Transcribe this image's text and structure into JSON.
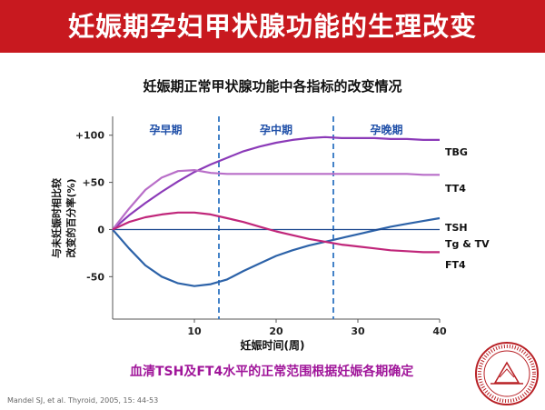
{
  "slide": {
    "title": "妊娠期孕妇甲状腺功能的生理改变",
    "footer_note": "血清TSH及FT4水平的正常范围根据妊娠各期确定",
    "citation": "Mandel SJ, et al.  Thyroid, 2005, 15: 44-53",
    "title_bg_color": "#c8191f"
  },
  "chart_data": {
    "type": "line",
    "title": "妊娠期正常甲状腺功能中各指标的改变情况",
    "xlabel": "妊娠时间(周)",
    "ylabel": [
      "与未妊娠时相比较",
      "改变的百分率(%)"
    ],
    "xlim": [
      0,
      40
    ],
    "ylim": [
      -95,
      120
    ],
    "x_ticks": [
      10,
      20,
      30,
      40
    ],
    "y_ticks": [
      {
        "value": 100,
        "label": "+100"
      },
      {
        "value": 50,
        "label": "+50"
      },
      {
        "value": 0,
        "label": "0"
      },
      {
        "value": -50,
        "label": "-50"
      }
    ],
    "grid": false,
    "periods": [
      {
        "label": "孕早期",
        "start": 0,
        "end": 13
      },
      {
        "label": "孕中期",
        "start": 13,
        "end": 27
      },
      {
        "label": "孕晚期",
        "start": 27,
        "end": 40
      }
    ],
    "period_dividers": [
      13,
      27
    ],
    "series": [
      {
        "name": "TBG",
        "color": "#8b3ab8",
        "x": [
          0,
          2,
          4,
          6,
          8,
          10,
          12,
          14,
          16,
          18,
          20,
          22,
          24,
          26,
          28,
          30,
          32,
          34,
          36,
          38,
          40
        ],
        "values": [
          0,
          15,
          28,
          40,
          51,
          61,
          69,
          76,
          83,
          88,
          92,
          95,
          97,
          98,
          97,
          97,
          97,
          96,
          96,
          95,
          95
        ]
      },
      {
        "name": "TT4",
        "color": "#b86ec8",
        "x": [
          0,
          2,
          4,
          6,
          8,
          10,
          12,
          14,
          16,
          18,
          20,
          22,
          24,
          26,
          28,
          30,
          32,
          34,
          36,
          38,
          40
        ],
        "values": [
          0,
          22,
          42,
          55,
          62,
          63,
          60,
          59,
          59,
          59,
          59,
          59,
          59,
          59,
          59,
          59,
          59,
          59,
          59,
          58,
          58
        ]
      },
      {
        "name": "TSH",
        "color": "#2c62a8",
        "x": [
          0,
          2,
          4,
          6,
          8,
          10,
          12,
          14,
          16,
          18,
          20,
          22,
          24,
          26,
          28,
          30,
          32,
          34,
          36,
          38,
          40
        ],
        "values": [
          0,
          -20,
          -38,
          -50,
          -57,
          -60,
          -58,
          -53,
          -44,
          -36,
          -28,
          -22,
          -17,
          -13,
          -9,
          -5,
          -1,
          3,
          6,
          9,
          12
        ]
      },
      {
        "name": "Tg & TV",
        "color": "#1e4a90",
        "x": [
          0,
          40
        ],
        "values": [
          0,
          0
        ]
      },
      {
        "name": "FT4",
        "color": "#c0267a",
        "x": [
          0,
          2,
          4,
          6,
          8,
          10,
          12,
          14,
          16,
          18,
          20,
          22,
          24,
          26,
          28,
          30,
          32,
          34,
          36,
          38,
          40
        ],
        "values": [
          0,
          8,
          13,
          16,
          18,
          18,
          16,
          12,
          8,
          3,
          -2,
          -6,
          -10,
          -13,
          -16,
          -18,
          -20,
          -22,
          -23,
          -24,
          -24
        ]
      }
    ]
  }
}
